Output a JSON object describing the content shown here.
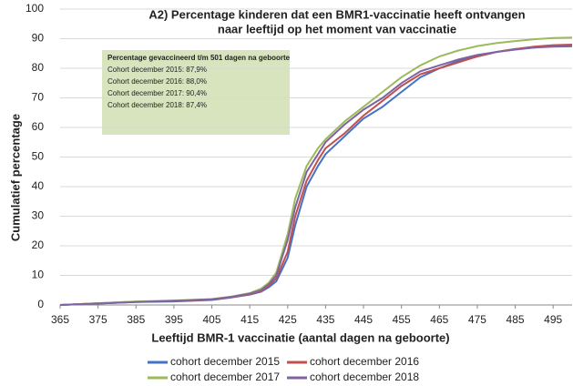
{
  "chart_data": {
    "type": "line",
    "title": [
      "A2) Percentage kinderen dat een BMR1-vaccinatie heeft ontvangen",
      "naar leeftijd op het moment van vaccinatie"
    ],
    "x_label": "Leeftijd BMR-1 vaccinatie (aantal dagen na geboorte)",
    "y_label": "Cumulatief percentage",
    "annotation": [
      "Percentage gevaccineerd t/m 501 dagen na geboorte",
      "Cohort december 2015: 87,9%",
      "Cohort december 2016: 88,0%",
      "Cohort december 2017: 90,4%",
      "Cohort december 2018: 87,4%"
    ],
    "x": [
      365,
      375,
      385,
      395,
      405,
      410,
      415,
      418,
      420,
      422,
      425,
      427,
      430,
      433,
      435,
      440,
      445,
      450,
      455,
      460,
      465,
      470,
      475,
      480,
      485,
      490,
      495,
      500
    ],
    "series": [
      {
        "name": "cohort december 2015",
        "color": "#4472c4",
        "values": [
          0,
          0.5,
          1,
          1.2,
          1.7,
          2.5,
          3.5,
          4.5,
          6,
          8,
          16,
          27,
          40,
          47,
          51,
          57,
          63,
          67,
          72,
          77,
          80,
          82.5,
          84,
          85.5,
          86.5,
          87,
          87.5,
          87.9
        ]
      },
      {
        "name": "cohort december 2016",
        "color": "#c0504d",
        "values": [
          0,
          0.6,
          1.1,
          1.3,
          1.8,
          2.6,
          3.6,
          4.7,
          6.5,
          9,
          18,
          30,
          42,
          49,
          53,
          58,
          64,
          69,
          74,
          78,
          80,
          82,
          84,
          85.5,
          86.5,
          87.3,
          87.8,
          88.0
        ]
      },
      {
        "name": "cohort december 2017",
        "color": "#9bbb59",
        "values": [
          0,
          0.6,
          1.2,
          1.5,
          2,
          2.8,
          4,
          5.5,
          7.5,
          11,
          24,
          36,
          47,
          53,
          56,
          62,
          67,
          72,
          77,
          81,
          84,
          86,
          87.5,
          88.5,
          89.2,
          89.8,
          90.2,
          90.4
        ]
      },
      {
        "name": "cohort december 2018",
        "color": "#8064a2",
        "values": [
          0,
          0.5,
          1,
          1.4,
          1.9,
          2.7,
          3.8,
          5,
          7,
          10,
          22,
          33,
          45,
          51,
          55,
          61,
          66,
          70,
          75,
          79,
          81,
          83,
          84.5,
          85.5,
          86.3,
          87,
          87.3,
          87.4
        ]
      }
    ],
    "xlim": [
      365,
      500
    ],
    "xticks": [
      365,
      375,
      385,
      395,
      405,
      415,
      425,
      435,
      445,
      455,
      465,
      475,
      485,
      495
    ],
    "ylim": [
      0,
      100
    ],
    "yticks": [
      0,
      10,
      20,
      30,
      40,
      50,
      60,
      70,
      80,
      90,
      100
    ],
    "grid": true
  }
}
